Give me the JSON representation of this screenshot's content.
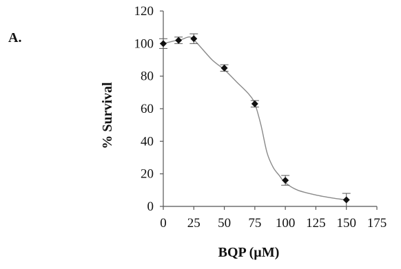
{
  "panel_label": "A.",
  "chart_data": {
    "type": "scatter",
    "title": "",
    "xlabel": "BQP (µM)",
    "ylabel": "% Survival",
    "xlim": [
      0,
      175
    ],
    "ylim": [
      0,
      120
    ],
    "xticks": [
      0,
      25,
      50,
      75,
      100,
      125,
      150,
      175
    ],
    "yticks": [
      0,
      20,
      40,
      60,
      80,
      100,
      120
    ],
    "grid": false,
    "legend": "none",
    "points": [
      {
        "x": 0,
        "y": 100,
        "err": 3
      },
      {
        "x": 12.5,
        "y": 102,
        "err": 2
      },
      {
        "x": 25,
        "y": 103,
        "err": 3
      },
      {
        "x": 50,
        "y": 85,
        "err": 2
      },
      {
        "x": 75,
        "y": 63,
        "err": 2
      },
      {
        "x": 100,
        "y": 16,
        "err": 3
      },
      {
        "x": 150,
        "y": 4,
        "err": 4
      }
    ],
    "trend_curve": [
      [
        0,
        100
      ],
      [
        8,
        101.5
      ],
      [
        15,
        102.5
      ],
      [
        22,
        104
      ],
      [
        28,
        100
      ],
      [
        40,
        90
      ],
      [
        50,
        84
      ],
      [
        60,
        76.5
      ],
      [
        70,
        69
      ],
      [
        75,
        63
      ],
      [
        80,
        50
      ],
      [
        85,
        33
      ],
      [
        90,
        24
      ],
      [
        95,
        19
      ],
      [
        100,
        14.5
      ],
      [
        110,
        10
      ],
      [
        125,
        7
      ],
      [
        140,
        5
      ],
      [
        150,
        4
      ]
    ],
    "colors": {
      "marker": "#111111",
      "curve": "#8a8a8a",
      "axis": "#555555"
    }
  }
}
